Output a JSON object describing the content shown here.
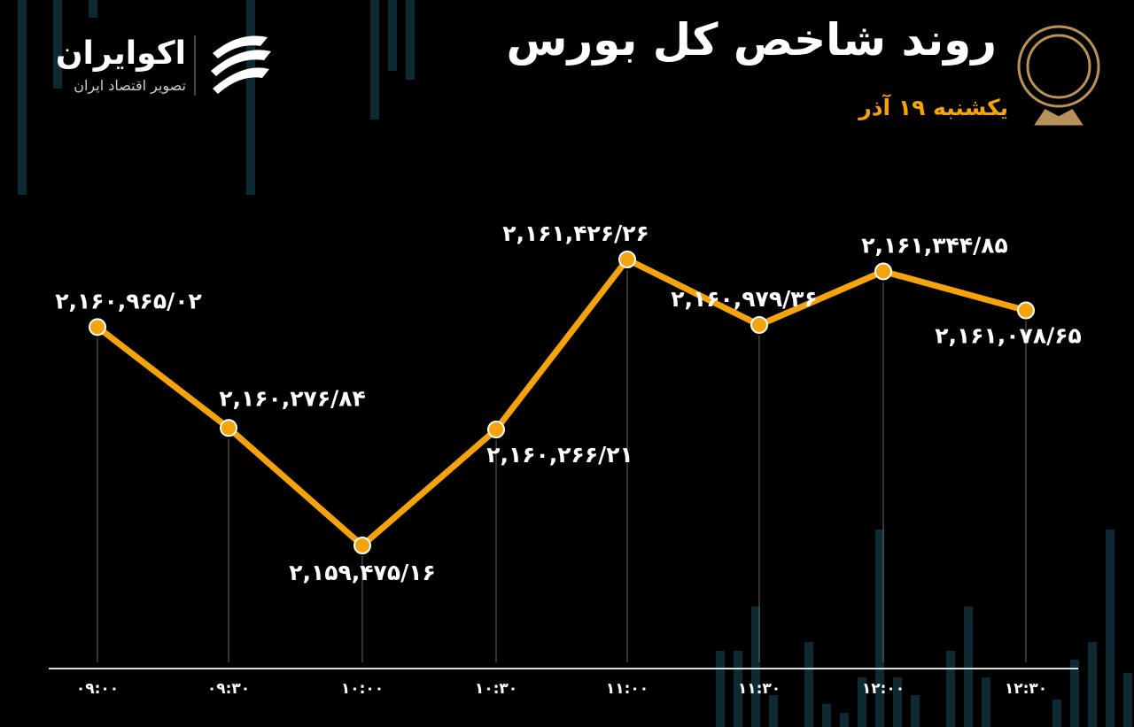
{
  "chart_data": {
    "type": "line",
    "title": "روند شاخص کل بورس",
    "subtitle": "یکشنبه ۱۹ آذر",
    "brand": "اکوایران",
    "brand_tagline": "تصویر اقتصاد ایران",
    "categories": [
      "۰۹:۰۰",
      "۰۹:۳۰",
      "۱۰:۰۰",
      "۱۰:۳۰",
      "۱۱:۰۰",
      "۱۱:۳۰",
      "۱۲:۰۰",
      "۱۲:۳۰"
    ],
    "values": [
      2160965.02,
      2160276.84,
      2159475.16,
      2160266.21,
      2161426.26,
      2160979.36,
      2161344.85,
      2161078.65
    ],
    "value_labels": [
      "۲,۱۶۰,۹۶۵/۰۲",
      "۲,۱۶۰,۲۷۶/۸۴",
      "۲,۱۵۹,۴۷۵/۱۶",
      "۲,۱۶۰,۲۶۶/۲۱",
      "۲,۱۶۱,۴۲۶/۲۶",
      "۲,۱۶۰,۹۷۹/۳۶",
      "۲,۱۶۱,۳۴۴/۸۵",
      "۲,۱۶۱,۰۷۸/۶۵"
    ],
    "color": "#f5a30a"
  }
}
